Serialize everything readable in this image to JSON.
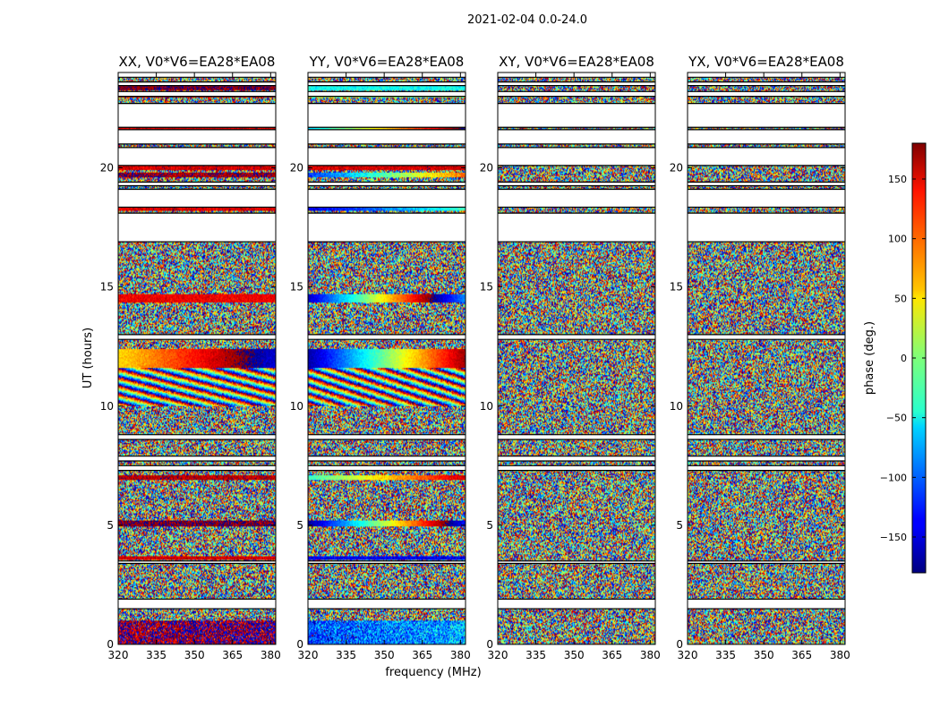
{
  "chart_data": {
    "type": "heatmap",
    "title": "2021-02-04 0.0-24.0",
    "xlabel": "frequency (MHz)",
    "ylabel": "UT (hours)",
    "xlim": [
      320,
      382
    ],
    "ylim": [
      0,
      24
    ],
    "x_ticks": [
      320,
      335,
      350,
      365,
      380
    ],
    "y_ticks": [
      0,
      5,
      10,
      15,
      20
    ],
    "colorbar": {
      "label": "phase (deg.)",
      "range": [
        -180,
        180
      ],
      "ticks": [
        150,
        100,
        50,
        0,
        -50,
        -100,
        -150
      ],
      "tick_labels": [
        "150",
        "100",
        "50",
        "0",
        "−50",
        "−100",
        "−150"
      ],
      "colormap": "jet"
    },
    "panels": [
      {
        "title": "XX, V0*V6=EA28*EA08",
        "gaps": [
          [
            1.5,
            1.9
          ],
          [
            3.4,
            3.5
          ],
          [
            7.3,
            7.5
          ],
          [
            7.7,
            7.9
          ],
          [
            8.6,
            8.8
          ],
          [
            12.8,
            13.0
          ],
          [
            16.9,
            18.1
          ],
          [
            18.35,
            19.1
          ],
          [
            19.25,
            19.4
          ],
          [
            20.1,
            20.85
          ],
          [
            21.0,
            21.6
          ],
          [
            21.7,
            22.7
          ],
          [
            23.0,
            23.2
          ],
          [
            23.45,
            23.6
          ],
          [
            23.8,
            24.0
          ]
        ],
        "coherent": [
          {
            "y": [
              0.0,
              1.0
            ],
            "base": 170,
            "slope": 0.15,
            "noise": 55
          },
          {
            "y": [
              3.55,
              3.7
            ],
            "base": 150,
            "slope": 0,
            "noise": 20
          },
          {
            "y": [
              4.95,
              5.2
            ],
            "base": 175,
            "slope": 0,
            "noise": 20
          },
          {
            "y": [
              6.9,
              7.1
            ],
            "base": 160,
            "slope": 0,
            "noise": 20
          },
          {
            "y": [
              11.6,
              12.4
            ],
            "base": 55,
            "slope": 2.5,
            "noise": 12
          },
          {
            "y": [
              14.35,
              14.7
            ],
            "base": 140,
            "slope": 0,
            "noise": 15
          },
          {
            "y": [
              18.2,
              18.35
            ],
            "base": 150,
            "slope": 0,
            "noise": 20
          },
          {
            "y": [
              19.6,
              19.8
            ],
            "base": 170,
            "slope": 0,
            "noise": 25
          },
          {
            "y": [
              19.9,
              20.1
            ],
            "base": 150,
            "slope": 0,
            "noise": 20
          },
          {
            "y": [
              21.62,
              21.7
            ],
            "base": 150,
            "slope": 0,
            "noise": 20
          },
          {
            "y": [
              22.95,
              23.05
            ],
            "base": 160,
            "slope": 0,
            "noise": 20
          },
          {
            "y": [
              23.25,
              23.45
            ],
            "base": 175,
            "slope": 0,
            "noise": 20
          }
        ],
        "fringe": [
          {
            "y": [
              10.0,
              11.6
            ],
            "period": 0.35,
            "rate": 0.08
          }
        ]
      },
      {
        "title": "YY, V0*V6=EA28*EA08",
        "gaps": [
          [
            1.5,
            1.9
          ],
          [
            3.4,
            3.5
          ],
          [
            7.3,
            7.5
          ],
          [
            7.7,
            7.9
          ],
          [
            8.6,
            8.8
          ],
          [
            12.8,
            13.0
          ],
          [
            16.9,
            18.1
          ],
          [
            18.35,
            19.1
          ],
          [
            19.25,
            19.4
          ],
          [
            20.1,
            20.85
          ],
          [
            21.0,
            21.6
          ],
          [
            21.7,
            22.7
          ],
          [
            23.0,
            23.2
          ],
          [
            23.45,
            23.6
          ],
          [
            23.8,
            24.0
          ]
        ],
        "coherent": [
          {
            "y": [
              0.0,
              1.0
            ],
            "base": -110,
            "slope": 0.6,
            "noise": 50
          },
          {
            "y": [
              3.55,
              3.7
            ],
            "base": -140,
            "slope": 0,
            "noise": 20
          },
          {
            "y": [
              4.95,
              5.2
            ],
            "base": -175,
            "slope": 6.5,
            "noise": 10
          },
          {
            "y": [
              6.9,
              7.1
            ],
            "base": -30,
            "slope": 3.0,
            "noise": 15
          },
          {
            "y": [
              11.6,
              12.4
            ],
            "base": -170,
            "slope": 5.5,
            "noise": 10
          },
          {
            "y": [
              14.35,
              14.7
            ],
            "base": -160,
            "slope": 7.0,
            "noise": 10
          },
          {
            "y": [
              18.2,
              18.35
            ],
            "base": -150,
            "slope": 2.0,
            "noise": 20
          },
          {
            "y": [
              19.6,
              19.8
            ],
            "base": -120,
            "slope": 3.5,
            "noise": 20
          },
          {
            "y": [
              19.9,
              20.1
            ],
            "base": 150,
            "slope": 0,
            "noise": 20
          },
          {
            "y": [
              21.62,
              21.7
            ],
            "base": -60,
            "slope": 4.0,
            "noise": 10
          },
          {
            "y": [
              22.95,
              23.05
            ],
            "base": 10,
            "slope": 0,
            "noise": 15
          },
          {
            "y": [
              23.25,
              23.45
            ],
            "base": -40,
            "slope": 0,
            "noise": 20
          }
        ],
        "fringe": [
          {
            "y": [
              10.0,
              11.6
            ],
            "period": 0.35,
            "rate": 0.1
          }
        ]
      },
      {
        "title": "XY, V0*V6=EA28*EA08",
        "gaps": [
          [
            1.5,
            1.9
          ],
          [
            3.4,
            3.5
          ],
          [
            7.3,
            7.5
          ],
          [
            7.7,
            7.9
          ],
          [
            8.6,
            8.8
          ],
          [
            12.8,
            13.0
          ],
          [
            16.9,
            18.1
          ],
          [
            18.35,
            19.1
          ],
          [
            19.25,
            19.4
          ],
          [
            20.1,
            20.85
          ],
          [
            21.0,
            21.6
          ],
          [
            21.7,
            22.7
          ],
          [
            23.0,
            23.2
          ],
          [
            23.45,
            23.6
          ],
          [
            23.8,
            24.0
          ]
        ],
        "coherent": [],
        "fringe": []
      },
      {
        "title": "YX, V0*V6=EA28*EA08",
        "gaps": [
          [
            1.5,
            1.9
          ],
          [
            3.4,
            3.5
          ],
          [
            7.3,
            7.5
          ],
          [
            7.7,
            7.9
          ],
          [
            8.6,
            8.8
          ],
          [
            12.8,
            13.0
          ],
          [
            16.9,
            18.1
          ],
          [
            18.35,
            19.1
          ],
          [
            19.25,
            19.4
          ],
          [
            20.1,
            20.85
          ],
          [
            21.0,
            21.6
          ],
          [
            21.7,
            22.7
          ],
          [
            23.0,
            23.2
          ],
          [
            23.45,
            23.6
          ],
          [
            23.8,
            24.0
          ]
        ],
        "coherent": [],
        "fringe": []
      }
    ]
  }
}
